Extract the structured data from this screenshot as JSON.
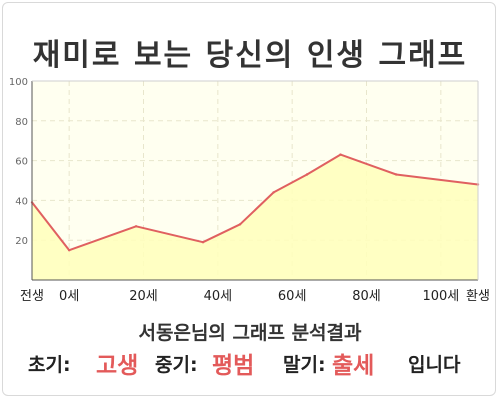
{
  "chart_data": {
    "type": "area",
    "title": "재미로 보는 당신의 인생 그래프",
    "x_tick_labels": [
      "전생",
      "0세",
      "20세",
      "40세",
      "60세",
      "80세",
      "100세",
      "환생"
    ],
    "x_tick_ages": [
      -10,
      0,
      20,
      40,
      60,
      80,
      100,
      110
    ],
    "y_ticks": [
      20,
      40,
      60,
      80,
      100
    ],
    "ylim": [
      0,
      100
    ],
    "xlim": [
      -10,
      110
    ],
    "grid": true,
    "series": [
      {
        "x": [
          -10,
          0,
          18,
          36,
          46,
          55,
          64,
          73,
          88,
          110
        ],
        "y": [
          39,
          15,
          27,
          19,
          28,
          44,
          53,
          63,
          53,
          48
        ]
      }
    ],
    "colors": {
      "line": "#e06060",
      "fill": "#ffffbb",
      "plot_bg": "#fffff0",
      "grid": "#e8e6cc"
    }
  },
  "summary": {
    "subtitle": "서동은님의 그래프 분석결과",
    "early_label": "초기:",
    "early_value": "고생",
    "mid_label": "중기:",
    "mid_value": "평범",
    "late_label": "말기:",
    "late_value": "출세",
    "suffix": "입니다"
  }
}
